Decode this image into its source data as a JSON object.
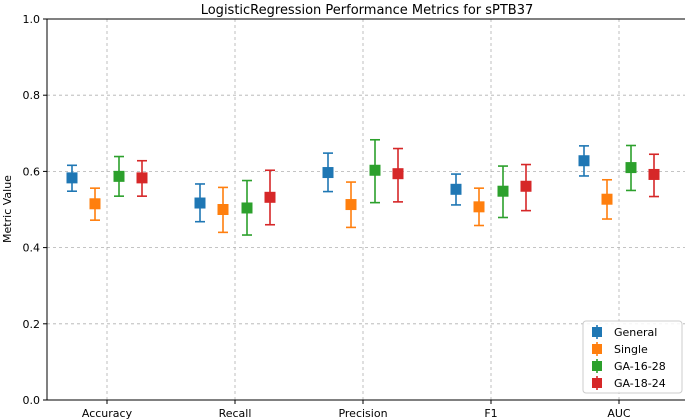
{
  "chart_data": {
    "type": "scatter",
    "title": "LogisticRegression Performance Metrics for sPTB37",
    "xlabel": "",
    "ylabel": "Metric Value",
    "ylim": [
      0.0,
      1.0
    ],
    "yticks": [
      "0.0",
      "0.2",
      "0.4",
      "0.6",
      "0.8",
      "1.0"
    ],
    "grid": true,
    "legend_position": "lower-right",
    "categories": [
      "Accuracy",
      "Recall",
      "Precision",
      "F1",
      "AUC"
    ],
    "series": [
      {
        "name": "General",
        "color": "#1f77b4",
        "values": [
          0.583,
          0.517,
          0.597,
          0.553,
          0.628
        ],
        "lower": [
          0.548,
          0.468,
          0.547,
          0.512,
          0.588
        ],
        "upper": [
          0.616,
          0.567,
          0.648,
          0.593,
          0.667
        ]
      },
      {
        "name": "Single",
        "color": "#ff7f0e",
        "values": [
          0.515,
          0.5,
          0.513,
          0.507,
          0.527
        ],
        "lower": [
          0.472,
          0.44,
          0.453,
          0.458,
          0.475
        ],
        "upper": [
          0.556,
          0.558,
          0.572,
          0.556,
          0.578
        ]
      },
      {
        "name": "GA-16-28",
        "color": "#2ca02c",
        "values": [
          0.587,
          0.504,
          0.603,
          0.548,
          0.61
        ],
        "lower": [
          0.535,
          0.433,
          0.518,
          0.479,
          0.55
        ],
        "upper": [
          0.639,
          0.576,
          0.683,
          0.614,
          0.668
        ]
      },
      {
        "name": "GA-18-24",
        "color": "#d62728",
        "values": [
          0.583,
          0.532,
          0.594,
          0.561,
          0.592
        ],
        "lower": [
          0.535,
          0.46,
          0.52,
          0.497,
          0.534
        ],
        "upper": [
          0.628,
          0.603,
          0.66,
          0.618,
          0.645
        ]
      }
    ]
  }
}
